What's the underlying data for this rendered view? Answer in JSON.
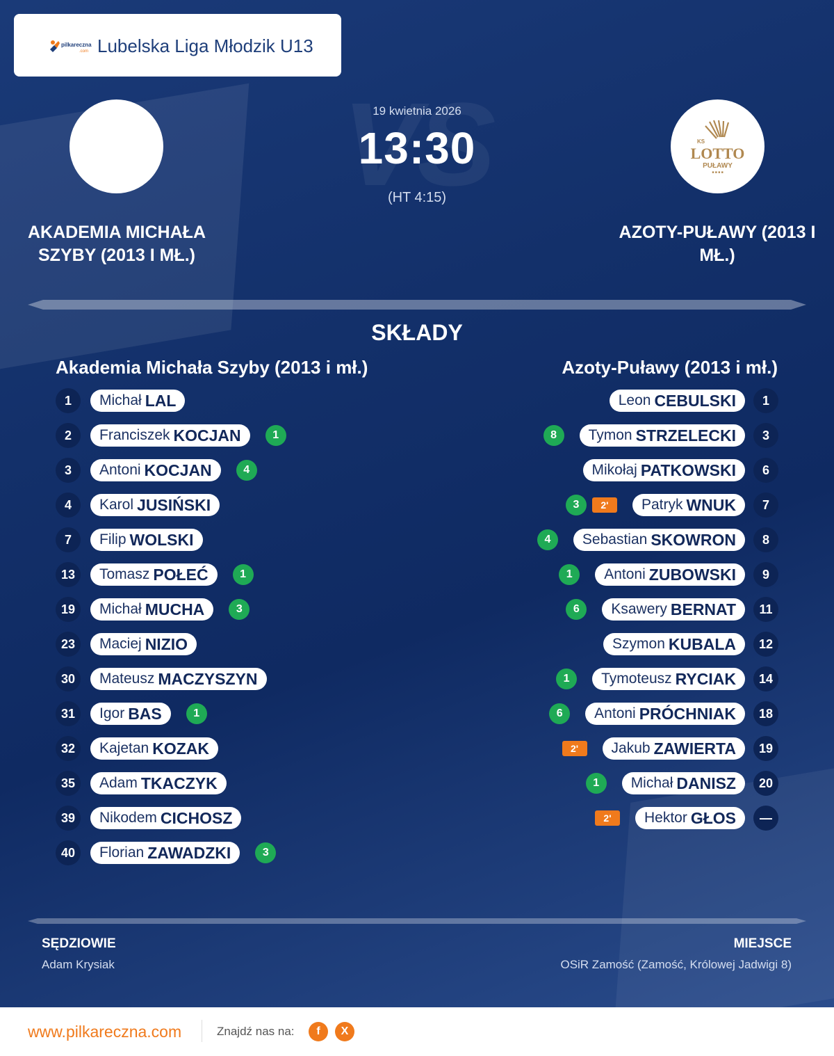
{
  "league": {
    "name": "Lubelska Liga Młodzik U13",
    "logo_text": "pilkareczna.com"
  },
  "match": {
    "date": "19 kwietnia 2026",
    "time": "13:30",
    "halftime": "(HT 4:15)",
    "vs_watermark": "VS"
  },
  "home": {
    "name": "AKADEMIA MICHAŁA SZYBY (2013 I MŁ.)",
    "lineup_title": "Akademia Michała Szyby (2013 i mł.)"
  },
  "away": {
    "name": "AZOTY-PUŁAWY (2013 I MŁ.)",
    "lineup_title": "Azoty-Puławy (2013 i mł.)",
    "crest_text": "KS LOTTO PUŁAWY"
  },
  "section_title": "SKŁADY",
  "home_players": [
    {
      "number": "1",
      "first": "Michał",
      "last": "LAL",
      "goals": "",
      "penalty": ""
    },
    {
      "number": "2",
      "first": "Franciszek",
      "last": "KOCJAN",
      "goals": "1",
      "penalty": ""
    },
    {
      "number": "3",
      "first": "Antoni",
      "last": "KOCJAN",
      "goals": "4",
      "penalty": ""
    },
    {
      "number": "4",
      "first": "Karol",
      "last": "JUSIŃSKI",
      "goals": "",
      "penalty": ""
    },
    {
      "number": "7",
      "first": "Filip",
      "last": "WOLSKI",
      "goals": "",
      "penalty": ""
    },
    {
      "number": "13",
      "first": "Tomasz",
      "last": "POŁEĆ",
      "goals": "1",
      "penalty": ""
    },
    {
      "number": "19",
      "first": "Michał",
      "last": "MUCHA",
      "goals": "3",
      "penalty": ""
    },
    {
      "number": "23",
      "first": "Maciej",
      "last": "NIZIO",
      "goals": "",
      "penalty": ""
    },
    {
      "number": "30",
      "first": "Mateusz",
      "last": "MACZYSZYN",
      "goals": "",
      "penalty": ""
    },
    {
      "number": "31",
      "first": "Igor",
      "last": "BAS",
      "goals": "1",
      "penalty": ""
    },
    {
      "number": "32",
      "first": "Kajetan",
      "last": "KOZAK",
      "goals": "",
      "penalty": ""
    },
    {
      "number": "35",
      "first": "Adam",
      "last": "TKACZYK",
      "goals": "",
      "penalty": ""
    },
    {
      "number": "39",
      "first": "Nikodem",
      "last": "CICHOSZ",
      "goals": "",
      "penalty": ""
    },
    {
      "number": "40",
      "first": "Florian",
      "last": "ZAWADZKI",
      "goals": "3",
      "penalty": ""
    }
  ],
  "away_players": [
    {
      "number": "1",
      "first": "Leon",
      "last": "CEBULSKI",
      "goals": "",
      "penalty": ""
    },
    {
      "number": "3",
      "first": "Tymon",
      "last": "STRZELECKI",
      "goals": "8",
      "penalty": ""
    },
    {
      "number": "6",
      "first": "Mikołaj",
      "last": "PATKOWSKI",
      "goals": "",
      "penalty": ""
    },
    {
      "number": "7",
      "first": "Patryk",
      "last": "WNUK",
      "goals": "3",
      "penalty": "2'"
    },
    {
      "number": "8",
      "first": "Sebastian",
      "last": "SKOWRON",
      "goals": "4",
      "penalty": ""
    },
    {
      "number": "9",
      "first": "Antoni",
      "last": "ZUBOWSKI",
      "goals": "1",
      "penalty": ""
    },
    {
      "number": "11",
      "first": "Ksawery",
      "last": "BERNAT",
      "goals": "6",
      "penalty": ""
    },
    {
      "number": "12",
      "first": "Szymon",
      "last": "KUBALA",
      "goals": "",
      "penalty": ""
    },
    {
      "number": "14",
      "first": "Tymoteusz",
      "last": "RYCIAK",
      "goals": "1",
      "penalty": ""
    },
    {
      "number": "18",
      "first": "Antoni",
      "last": "PRÓCHNIAK",
      "goals": "6",
      "penalty": ""
    },
    {
      "number": "19",
      "first": "Jakub",
      "last": "ZAWIERTA",
      "goals": "",
      "penalty": "2'"
    },
    {
      "number": "20",
      "first": "Michał",
      "last": "DANISZ",
      "goals": "1",
      "penalty": ""
    },
    {
      "number": "—",
      "first": "Hektor",
      "last": "GŁOS",
      "goals": "",
      "penalty": "2'"
    }
  ],
  "referees": {
    "label": "SĘDZIOWIE",
    "value": "Adam Krysiak"
  },
  "venue": {
    "label": "MIEJSCE",
    "value": "OSiR Zamość (Zamość, Królowej Jadwigi 8)"
  },
  "footer": {
    "site": "www.pilkareczna.com",
    "find_us": "Znajdź nas na:",
    "social": [
      {
        "icon": "facebook-icon",
        "glyph": "f"
      },
      {
        "icon": "x-icon",
        "glyph": "X"
      }
    ]
  },
  "colors": {
    "background": "#13306a",
    "goal_badge": "#1faa55",
    "penalty_badge": "#f07a1c",
    "number_circle": "#0d2455",
    "brand_orange": "#f07a1c"
  }
}
